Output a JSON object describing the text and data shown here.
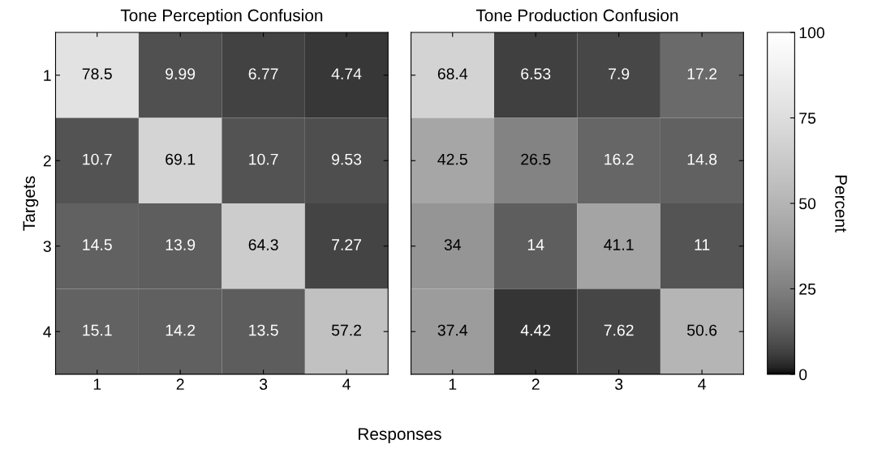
{
  "chart_data": [
    {
      "type": "heatmap",
      "title": "Tone Perception Confusion",
      "xlabel": "Responses",
      "ylabel": "Targets",
      "categories": [
        "1",
        "2",
        "3",
        "4"
      ],
      "y_categories": [
        "1",
        "2",
        "3",
        "4"
      ],
      "cells": [
        [
          78.5,
          9.99,
          6.77,
          4.74
        ],
        [
          10.7,
          69.1,
          10.7,
          9.53
        ],
        [
          14.5,
          13.9,
          64.3,
          7.27
        ],
        [
          15.1,
          14.2,
          13.5,
          57.2
        ]
      ],
      "data_labels": true
    },
    {
      "type": "heatmap",
      "title": "Tone Production Confusion",
      "clabel": "Percent",
      "categories": [
        "1",
        "2",
        "3",
        "4"
      ],
      "y_categories": [
        "1",
        "2",
        "3",
        "4"
      ],
      "cells": [
        [
          68.4,
          6.53,
          7.9,
          17.2
        ],
        [
          42.5,
          26.5,
          16.2,
          14.8
        ],
        [
          34,
          14,
          41.1,
          11
        ],
        [
          37.4,
          4.42,
          7.62,
          50.6
        ]
      ],
      "clim": [
        0,
        100
      ],
      "cticks": [
        0,
        25,
        50,
        75,
        100
      ],
      "data_labels": true,
      "tick_labels": "x"
    }
  ]
}
